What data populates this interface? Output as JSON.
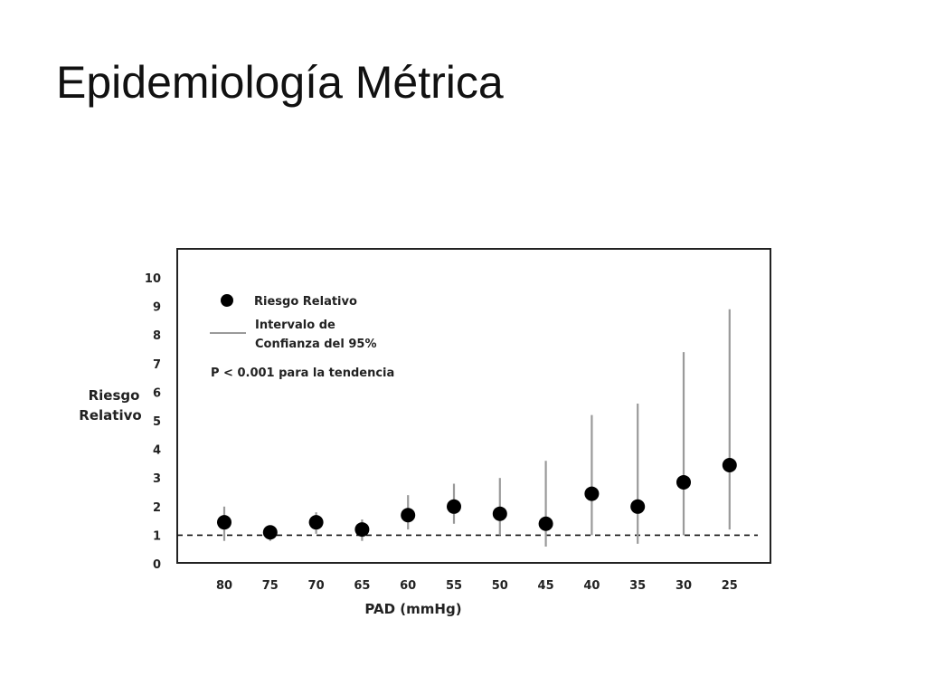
{
  "slide": {
    "title": "Epidemiología Métrica"
  },
  "colors": {
    "point": "#000000",
    "ci_line": "#9a9a9a",
    "frame": "#222222"
  },
  "chart_data": {
    "type": "scatter",
    "xlabel": "PAD (mmHg)",
    "ylabel_line1": "Riesgo",
    "ylabel_line2": "Relativo",
    "categories": [
      "80",
      "75",
      "70",
      "65",
      "60",
      "55",
      "50",
      "45",
      "40",
      "35",
      "30",
      "25"
    ],
    "ylim": [
      0,
      10
    ],
    "yticks": [
      0,
      1,
      2,
      3,
      4,
      5,
      6,
      7,
      8,
      9,
      10
    ],
    "reference_line": 1,
    "grid": false,
    "legend_position": "top-left",
    "series": [
      {
        "name": "Riesgo Relativo",
        "values": [
          1.45,
          1.1,
          1.45,
          1.2,
          1.7,
          2.0,
          1.75,
          1.4,
          2.45,
          2.0,
          2.85,
          3.45
        ],
        "ci_low": [
          0.8,
          0.8,
          1.05,
          0.8,
          1.2,
          1.4,
          1.0,
          0.6,
          1.0,
          0.7,
          1.0,
          1.2
        ],
        "ci_high": [
          2.0,
          1.2,
          1.8,
          1.55,
          2.4,
          2.8,
          3.0,
          3.6,
          5.2,
          5.6,
          7.4,
          8.9
        ]
      }
    ],
    "legend": {
      "point_label": "Riesgo Relativo",
      "ci_label_line1": "Intervalo de",
      "ci_label_line2": "Confianza del 95%",
      "p_value_text": "P < 0.001 para la tendencia"
    }
  }
}
